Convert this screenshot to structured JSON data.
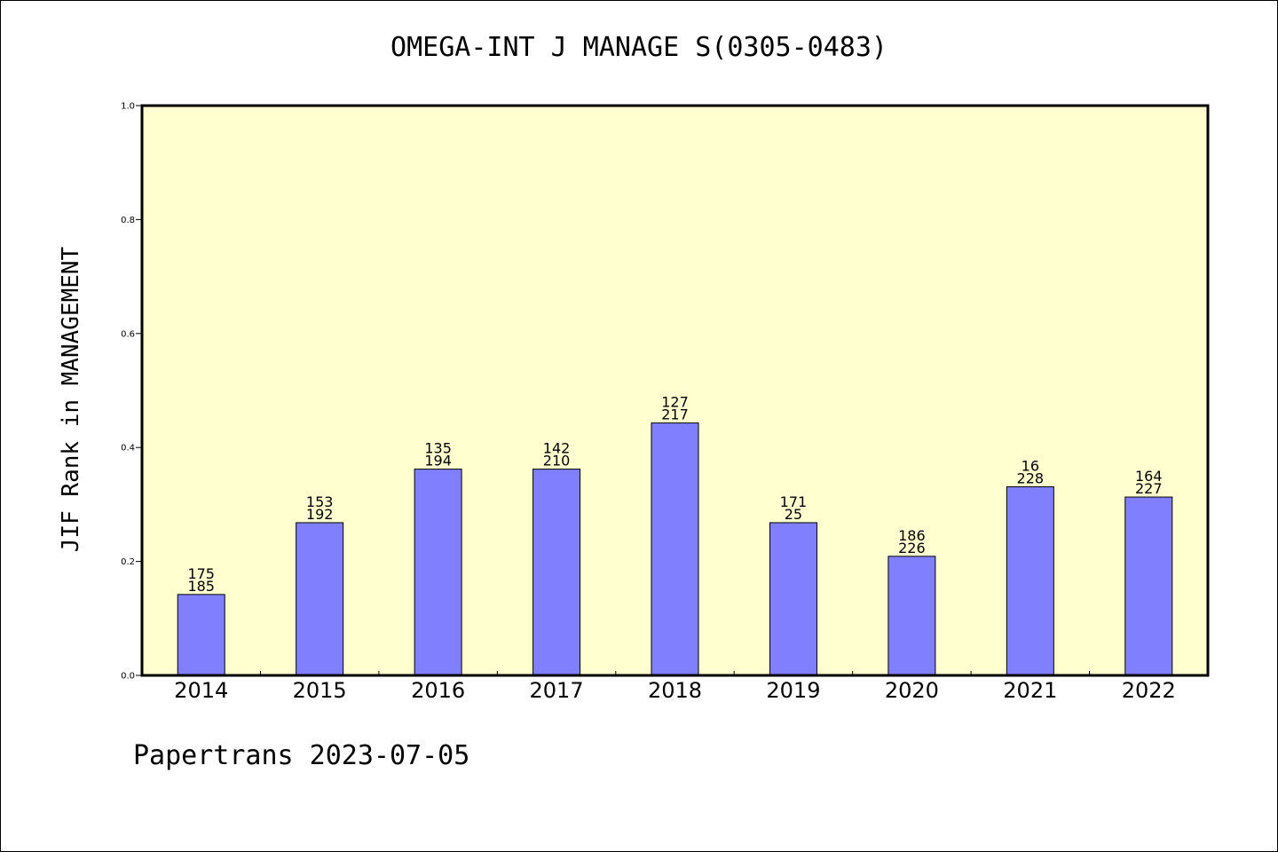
{
  "chart_data": {
    "type": "bar",
    "title": "OMEGA-INT J MANAGE S(0305-0483)",
    "ylabel": "JIF Rank in MANAGEMENT",
    "xlabel": "",
    "ylim": [
      0,
      1.0
    ],
    "yticks": [
      "0.0",
      "0.2",
      "0.4",
      "0.6",
      "0.8",
      "1.0"
    ],
    "categories": [
      "2014",
      "2015",
      "2016",
      "2017",
      "2018",
      "2019",
      "2020",
      "2021",
      "2022"
    ],
    "values": [
      0.142,
      0.268,
      0.362,
      0.362,
      0.443,
      0.268,
      0.209,
      0.331,
      0.313
    ],
    "rank_labels": [
      [
        "175",
        "185"
      ],
      [
        "153",
        "192"
      ],
      [
        "135",
        "194"
      ],
      [
        "142",
        "210"
      ],
      [
        "127",
        "217"
      ],
      [
        "171",
        "25"
      ],
      [
        "186",
        "226"
      ],
      [
        "16",
        "228"
      ],
      [
        "164",
        "227"
      ]
    ],
    "grid": false,
    "colors": {
      "plot_background": "#ffffd0",
      "bar_fill": "#8080ff",
      "bar_stroke": "#000000"
    }
  },
  "footer": {
    "text": "Papertrans 2023-07-05"
  }
}
